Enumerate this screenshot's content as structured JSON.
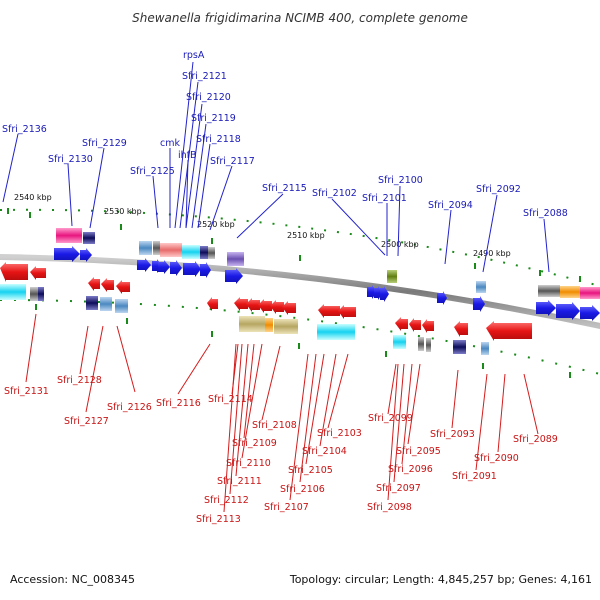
{
  "title": "Shewanella frigidimarina NCIMB 400, complete genome",
  "scale_labels": [
    "2540 kbp",
    "2530 kbp",
    "2520 kbp",
    "2510 kbp",
    "2500 kbp",
    "2490 kbp"
  ],
  "forward_labels": [
    "rpsA",
    "Sfri_2121",
    "Sfri_2120",
    "Sfri_2119",
    "Sfri_2118",
    "cmk",
    "ihfB",
    "Sfri_2117",
    "Sfri_2125",
    "Sfri_2136",
    "Sfri_2130",
    "Sfri_2129",
    "Sfri_2115",
    "Sfri_2102",
    "Sfri_2100",
    "Sfri_2101",
    "Sfri_2094",
    "Sfri_2092",
    "Sfri_2088"
  ],
  "reverse_labels": [
    "Sfri_2131",
    "Sfri_2128",
    "Sfri_2127",
    "Sfri_2126",
    "Sfri_2116",
    "Sfri_2114",
    "Sfri_2108",
    "Sfri_2109",
    "Sfri_2110",
    "Sfri_2111",
    "Sfri_2112",
    "Sfri_2113",
    "Sfri_2103",
    "Sfri_2104",
    "Sfri_2105",
    "Sfri_2106",
    "Sfri_2107",
    "Sfri_2099",
    "Sfri_2095",
    "Sfri_2096",
    "Sfri_2097",
    "Sfri_2098",
    "Sfri_2093",
    "Sfri_2089",
    "Sfri_2090",
    "Sfri_2091"
  ],
  "footer": {
    "accession": "Accession: NC_008345",
    "topology": "Topology: circular; Length: 4,845,257 bp; Genes: 4,161"
  },
  "colors": {
    "forward_gene": "#1a1ae6",
    "reverse_gene": "#e61414",
    "forward_label": "#1a1ab8",
    "reverse_label": "#c81414",
    "backbone": "#8c8c8c",
    "scale_tick": "#1a8a1a",
    "title": "#333333"
  }
}
